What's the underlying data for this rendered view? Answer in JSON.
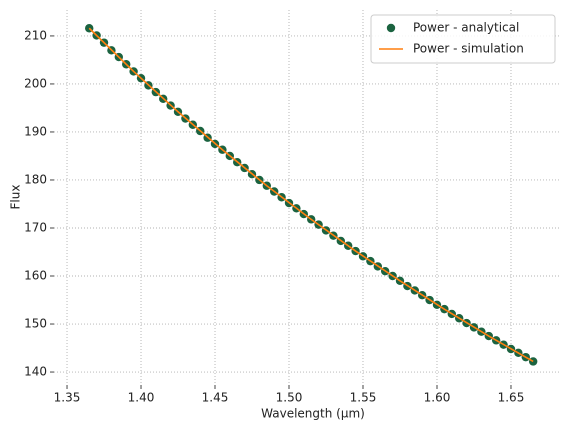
{
  "chart_data": {
    "type": "line",
    "xlabel": "Wavelength (μm)",
    "ylabel": "Flux",
    "xlim": [
      1.3412,
      1.6838
    ],
    "ylim": [
      137.3,
      215.4
    ],
    "xticks": [
      1.35,
      {
        "value": 1.4,
        "label": "1.40"
      },
      1.45,
      {
        "value": 1.5,
        "label": "1.50"
      },
      1.55,
      {
        "value": 1.6,
        "label": "1.60"
      },
      1.65
    ],
    "yticks": [
      140,
      150,
      160,
      170,
      180,
      190,
      200,
      210
    ],
    "grid": true,
    "legend": "upper right",
    "series": [
      {
        "name": "Power - analytical",
        "color": "#1b6340",
        "style": "marker",
        "x": [
          1.365,
          1.37,
          1.375,
          1.38,
          1.385,
          1.39,
          1.395,
          1.4,
          1.405,
          1.41,
          1.415,
          1.42,
          1.425,
          1.43,
          1.435,
          1.44,
          1.445,
          1.45,
          1.455,
          1.46,
          1.465,
          1.47,
          1.475,
          1.48,
          1.485,
          1.49,
          1.495,
          1.5,
          1.505,
          1.51,
          1.515,
          1.52,
          1.525,
          1.53,
          1.535,
          1.54,
          1.545,
          1.55,
          1.555,
          1.56,
          1.565,
          1.57,
          1.575,
          1.58,
          1.585,
          1.59,
          1.595,
          1.6,
          1.605,
          1.61,
          1.615,
          1.62,
          1.625,
          1.63,
          1.635,
          1.64,
          1.645,
          1.65,
          1.655,
          1.66,
          1.665
        ],
        "values": [
          211.6,
          210.1,
          208.6,
          207.0,
          205.6,
          204.1,
          202.6,
          201.2,
          199.7,
          198.3,
          196.9,
          195.5,
          194.2,
          192.8,
          191.5,
          190.2,
          188.8,
          187.5,
          186.3,
          185.0,
          183.7,
          182.5,
          181.2,
          180.0,
          178.8,
          177.6,
          176.4,
          175.2,
          174.1,
          172.9,
          171.8,
          170.7,
          169.5,
          168.4,
          167.3,
          166.3,
          165.2,
          164.1,
          163.1,
          162.0,
          161.0,
          160.0,
          159.0,
          157.9,
          157.0,
          156.0,
          155.0,
          154.0,
          153.1,
          152.1,
          151.2,
          150.2,
          149.3,
          148.4,
          147.5,
          146.6,
          145.7,
          144.8,
          144.0,
          143.1,
          142.2
        ]
      },
      {
        "name": "Power - simulation",
        "color": "#ff7f0e",
        "style": "line",
        "x": [
          1.365,
          1.395,
          1.425,
          1.455,
          1.485,
          1.515,
          1.545,
          1.575,
          1.605,
          1.635,
          1.665
        ],
        "values": [
          211.6,
          202.6,
          194.2,
          186.3,
          178.8,
          171.8,
          165.2,
          159.0,
          153.1,
          147.5,
          142.2
        ]
      }
    ]
  }
}
